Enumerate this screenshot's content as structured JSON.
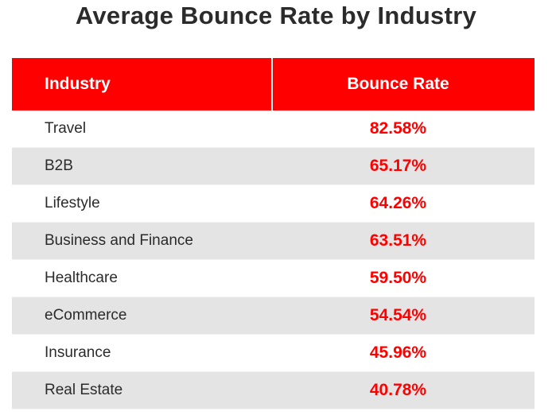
{
  "chart_data": {
    "type": "table",
    "title": "Average Bounce Rate by Industry",
    "columns": [
      "Industry",
      "Bounce Rate"
    ],
    "rows": [
      {
        "industry": "Travel",
        "bounce_rate": "82.58%"
      },
      {
        "industry": "B2B",
        "bounce_rate": "65.17%"
      },
      {
        "industry": "Lifestyle",
        "bounce_rate": "64.26%"
      },
      {
        "industry": "Business and Finance",
        "bounce_rate": "63.51%"
      },
      {
        "industry": "Healthcare",
        "bounce_rate": "59.50%"
      },
      {
        "industry": "eCommerce",
        "bounce_rate": "54.54%"
      },
      {
        "industry": "Insurance",
        "bounce_rate": "45.96%"
      },
      {
        "industry": "Real Estate",
        "bounce_rate": "40.78%"
      }
    ],
    "values": [
      82.58,
      65.17,
      64.26,
      63.51,
      59.5,
      54.54,
      45.96,
      40.78
    ]
  },
  "colors": {
    "header_bg": "#ff0000",
    "header_text": "#ffffff",
    "value_text": "#ff0000",
    "label_text": "#2b2b2b",
    "stripe": "#e4e4e4"
  }
}
